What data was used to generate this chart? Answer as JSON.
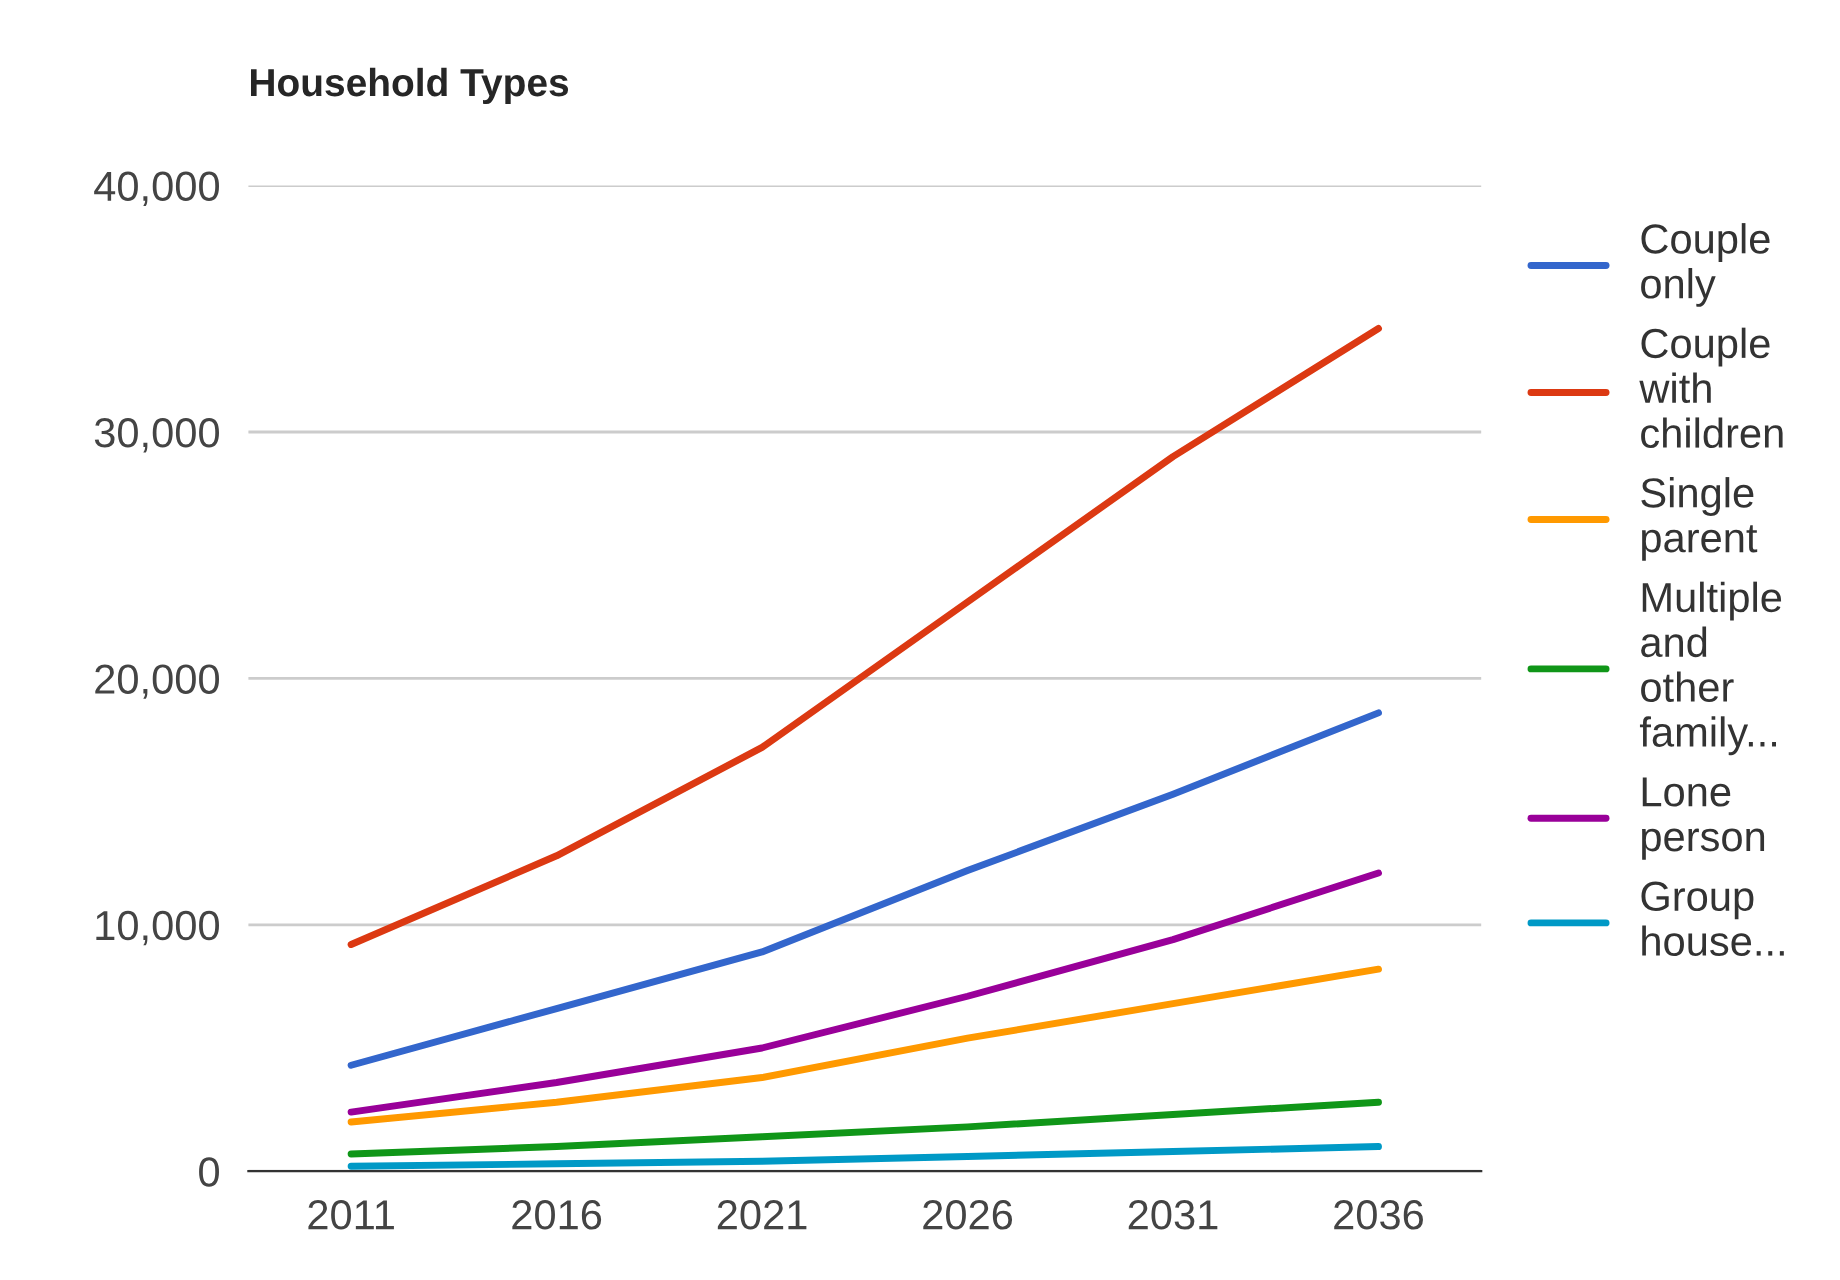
{
  "chart_data": {
    "type": "line",
    "title": "Household Types",
    "categories": [
      "2011",
      "2016",
      "2021",
      "2026",
      "2031",
      "2036"
    ],
    "series": [
      {
        "name": "Couple only",
        "color": "#3366cc",
        "values": [
          4300,
          6600,
          8900,
          12200,
          15300,
          18600
        ]
      },
      {
        "name": "Couple with children",
        "color": "#dc3912",
        "values": [
          9200,
          12800,
          17200,
          23100,
          29000,
          34200
        ]
      },
      {
        "name": "Single parent",
        "color": "#ff9900",
        "values": [
          2000,
          2800,
          3800,
          5400,
          6800,
          8200
        ]
      },
      {
        "name": "Multiple and other family...",
        "color": "#109618",
        "values": [
          700,
          1000,
          1400,
          1800,
          2300,
          2800
        ]
      },
      {
        "name": "Lone person",
        "color": "#990099",
        "values": [
          2400,
          3600,
          5000,
          7100,
          9400,
          12100
        ]
      },
      {
        "name": "Group house...",
        "color": "#0099c6",
        "values": [
          200,
          300,
          400,
          600,
          800,
          1000
        ]
      }
    ],
    "ylim": [
      0,
      40000
    ],
    "yticks": [
      {
        "value": 0,
        "label": "0"
      },
      {
        "value": 10000,
        "label": "10,000"
      },
      {
        "value": 20000,
        "label": "20,000"
      },
      {
        "value": 30000,
        "label": "30,000"
      },
      {
        "value": 40000,
        "label": "40,000"
      }
    ],
    "grid": "y",
    "legend": "right"
  }
}
